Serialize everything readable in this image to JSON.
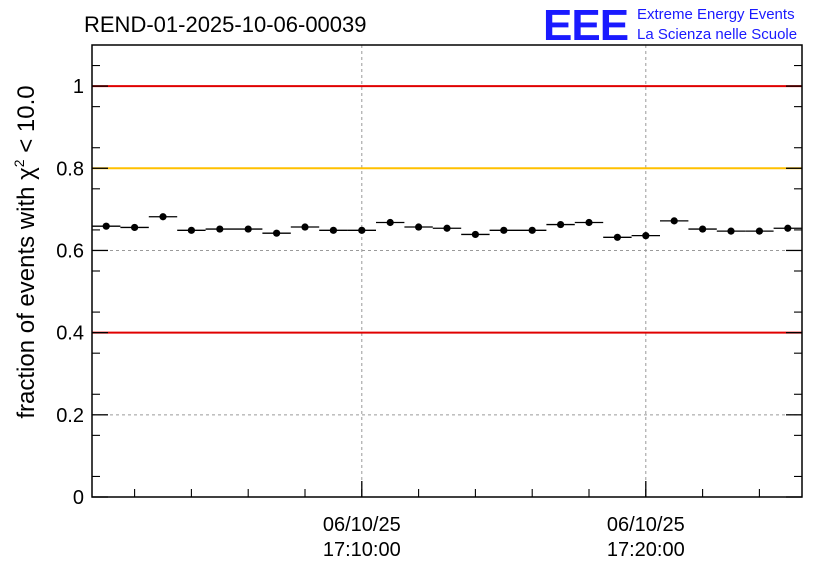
{
  "chart_data": {
    "type": "scatter",
    "title": "REND-01-2025-10-06-00039",
    "ylabel_prefix": "fraction of events with ",
    "ylabel_symbol": "χ",
    "ylabel_exponent": "2",
    "ylabel_suffix": " < 10.0",
    "xlabel": "",
    "ylim": [
      0,
      1.1
    ],
    "yticks": [
      {
        "value": 0,
        "label": "0"
      },
      {
        "value": 0.2,
        "label": "0.2"
      },
      {
        "value": 0.4,
        "label": "0.4"
      },
      {
        "value": 0.6,
        "label": "0.6"
      },
      {
        "value": 0.8,
        "label": "0.8"
      },
      {
        "value": 1,
        "label": "1"
      }
    ],
    "x_unit": "minutes",
    "xlim": [
      0,
      25
    ],
    "xtick_major": [
      {
        "value": 9.5,
        "date": "06/10/25",
        "time": "17:10:00"
      },
      {
        "value": 19.5,
        "date": "06/10/25",
        "time": "17:20:00"
      }
    ],
    "xtick_minor_step": 2,
    "xtick_minor_offset": 1.5,
    "reference_lines": [
      {
        "value": 1.0,
        "color": "#e00000"
      },
      {
        "value": 0.8,
        "color": "#ffc000"
      },
      {
        "value": 0.4,
        "color": "#e00000"
      }
    ],
    "gridlines": {
      "y": [
        0.2,
        0.6
      ],
      "x": [
        9.5,
        19.5
      ]
    },
    "bin_width": 1,
    "series": [
      {
        "name": "fraction",
        "x": [
          0.5,
          1.5,
          2.5,
          3.5,
          4.5,
          5.5,
          6.5,
          7.5,
          8.5,
          9.5,
          10.5,
          11.5,
          12.5,
          13.5,
          14.5,
          15.5,
          16.5,
          17.5,
          18.5,
          19.5,
          20.5,
          21.5,
          22.5,
          23.5,
          24.5
        ],
        "values": [
          0.659,
          0.656,
          0.682,
          0.649,
          0.652,
          0.652,
          0.642,
          0.657,
          0.649,
          0.649,
          0.668,
          0.657,
          0.654,
          0.639,
          0.649,
          0.649,
          0.663,
          0.668,
          0.632,
          0.636,
          0.672,
          0.652,
          0.647,
          0.647,
          0.654
        ],
        "errors": [
          0.006,
          0.006,
          0.006,
          0.006,
          0.006,
          0.006,
          0.006,
          0.006,
          0.006,
          0.006,
          0.006,
          0.006,
          0.006,
          0.006,
          0.006,
          0.006,
          0.006,
          0.006,
          0.006,
          0.006,
          0.006,
          0.006,
          0.006,
          0.006,
          0.006
        ]
      }
    ]
  },
  "logo": {
    "mark": "EEE",
    "line1": "Extreme Energy Events",
    "line2": "La Scienza nelle Scuole",
    "color": "#1a1aff"
  }
}
